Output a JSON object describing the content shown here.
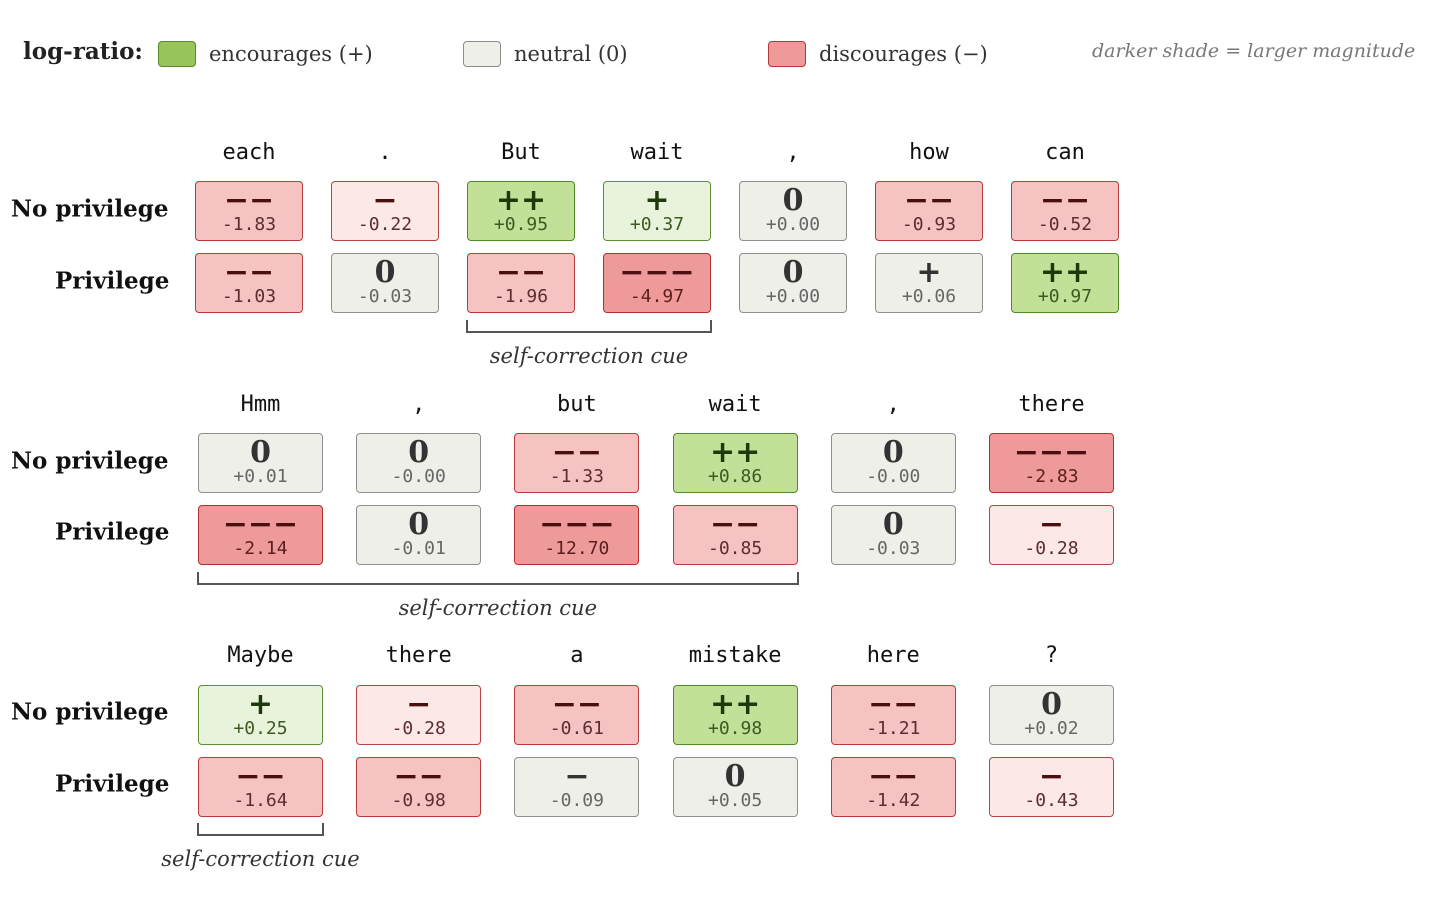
{
  "legend": {
    "title": "log-ratio:",
    "items": [
      {
        "label": "encourages (+)",
        "fill": "#98c45c",
        "border": "#5a8a2a"
      },
      {
        "label": "neutral (0)",
        "fill": "#efefe9",
        "border": "#8c8c8c"
      },
      {
        "label": "discourages (−)",
        "fill": "#ef9a9a",
        "border": "#b03a3a"
      }
    ],
    "note": "darker shade = larger magnitude"
  },
  "rows": {
    "no_privilege": "No privilege",
    "privilege": "Privilege"
  },
  "groups": [
    {
      "tokens": [
        "each",
        ".",
        "But",
        "wait",
        ",",
        "how",
        "can"
      ],
      "no_privilege": [
        {
          "sym": "−−",
          "val": "-1.83"
        },
        {
          "sym": "−",
          "val": "-0.22"
        },
        {
          "sym": "++",
          "val": "+0.95"
        },
        {
          "sym": "+",
          "val": "+0.37"
        },
        {
          "sym": "0",
          "val": "+0.00"
        },
        {
          "sym": "−−",
          "val": "-0.93"
        },
        {
          "sym": "−−",
          "val": "-0.52"
        }
      ],
      "privilege": [
        {
          "sym": "−−",
          "val": "-1.03"
        },
        {
          "sym": "0",
          "val": "-0.03"
        },
        {
          "sym": "−−",
          "val": "-1.96"
        },
        {
          "sym": "−−−",
          "val": "-4.97"
        },
        {
          "sym": "0",
          "val": "+0.00"
        },
        {
          "sym": "+",
          "val": "+0.06"
        },
        {
          "sym": "++",
          "val": "+0.97"
        }
      ],
      "bracket": {
        "from": 2,
        "to": 3,
        "label": "self-correction cue"
      }
    },
    {
      "tokens": [
        "Hmm",
        ",",
        "but",
        "wait",
        ",",
        "there"
      ],
      "no_privilege": [
        {
          "sym": "0",
          "val": "+0.01"
        },
        {
          "sym": "0",
          "val": "-0.00"
        },
        {
          "sym": "−−",
          "val": "-1.33"
        },
        {
          "sym": "++",
          "val": "+0.86"
        },
        {
          "sym": "0",
          "val": "-0.00"
        },
        {
          "sym": "−−−",
          "val": "-2.83"
        }
      ],
      "privilege": [
        {
          "sym": "−−−",
          "val": "-2.14"
        },
        {
          "sym": "0",
          "val": "-0.01"
        },
        {
          "sym": "−−−",
          "val": "-12.70"
        },
        {
          "sym": "−−",
          "val": "-0.85"
        },
        {
          "sym": "0",
          "val": "-0.03"
        },
        {
          "sym": "−",
          "val": "-0.28"
        }
      ],
      "bracket": {
        "from": 0,
        "to": 3,
        "label": "self-correction cue"
      }
    },
    {
      "tokens": [
        "Maybe",
        "there",
        "a",
        "mistake",
        "here",
        "?"
      ],
      "no_privilege": [
        {
          "sym": "+",
          "val": "+0.25"
        },
        {
          "sym": "−",
          "val": "-0.28"
        },
        {
          "sym": "−−",
          "val": "-0.61"
        },
        {
          "sym": "++",
          "val": "+0.98"
        },
        {
          "sym": "−−",
          "val": "-1.21"
        },
        {
          "sym": "0",
          "val": "+0.02"
        }
      ],
      "privilege": [
        {
          "sym": "−−",
          "val": "-1.64"
        },
        {
          "sym": "−−",
          "val": "-0.98"
        },
        {
          "sym": "−",
          "val": "-0.09"
        },
        {
          "sym": "0",
          "val": "+0.05"
        },
        {
          "sym": "−−",
          "val": "-1.42"
        },
        {
          "sym": "−",
          "val": "-0.43"
        }
      ],
      "bracket": {
        "from": 0,
        "to": 0,
        "label": "self-correction cue"
      }
    }
  ]
}
